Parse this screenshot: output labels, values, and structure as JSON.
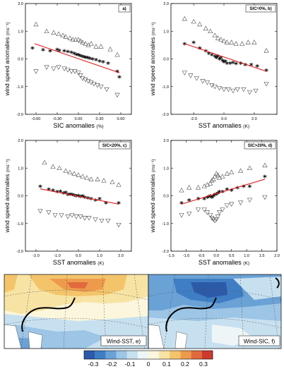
{
  "panels": [
    {
      "type": "scatter",
      "label": "a)",
      "xlabel": "SIC anomalies",
      "xunit": "(%)",
      "ylabel": "wind speed anomalies",
      "yunit": "(ms⁻¹)",
      "xlim": [
        -0.75,
        0.75
      ],
      "ylim": [
        -2.0,
        2.0
      ],
      "xticks": [
        -0.6,
        -0.3,
        0.0,
        0.3,
        0.6
      ],
      "xtick_labels": [
        "-0.60",
        "-0.30",
        "0.00",
        "0.30",
        "0.60"
      ],
      "yticks": [
        -2.0,
        -1.0,
        0.0,
        1.0,
        2.0
      ],
      "ytick_labels": [
        "-2.0",
        "-1.0",
        "0.0",
        "1.0",
        "2.0"
      ],
      "fit": {
        "x": [
          -0.62,
          0.58
        ],
        "y": [
          0.55,
          -0.5
        ]
      },
      "series": [
        {
          "marker": "star",
          "x": [
            -0.65,
            -0.5,
            -0.4,
            -0.3,
            -0.27,
            -0.2,
            -0.15,
            -0.1,
            -0.06,
            -0.03,
            0.0,
            0.02,
            0.05,
            0.08,
            0.1,
            0.13,
            0.16,
            0.2,
            0.25,
            0.3,
            0.35,
            0.42,
            0.55,
            0.58
          ],
          "y": [
            0.35,
            0.28,
            0.25,
            0.3,
            0.26,
            0.25,
            0.22,
            0.2,
            0.15,
            0.12,
            0.1,
            0.08,
            0.05,
            0.03,
            0.02,
            0.0,
            -0.02,
            -0.05,
            -0.08,
            -0.12,
            -0.15,
            -0.2,
            -0.5,
            -0.7
          ]
        },
        {
          "marker": "triangle-up",
          "x": [
            -0.6,
            -0.45,
            -0.35,
            -0.28,
            -0.22,
            -0.18,
            -0.12,
            -0.08,
            -0.04,
            0.0,
            0.03,
            0.06,
            0.1,
            0.14,
            0.18,
            0.25,
            0.32,
            0.45,
            0.55
          ],
          "y": [
            1.25,
            1.0,
            0.95,
            0.9,
            0.85,
            0.8,
            0.75,
            0.7,
            0.7,
            0.7,
            0.65,
            0.6,
            0.55,
            0.5,
            0.55,
            0.45,
            0.45,
            0.35,
            0.15
          ]
        },
        {
          "marker": "triangle-down",
          "x": [
            -0.6,
            -0.45,
            -0.35,
            -0.28,
            -0.2,
            -0.15,
            -0.1,
            -0.05,
            0.0,
            0.03,
            0.06,
            0.1,
            0.14,
            0.18,
            0.22,
            0.27,
            0.32,
            0.4,
            0.55
          ],
          "y": [
            -0.45,
            -0.3,
            -0.35,
            -0.3,
            -0.35,
            -0.4,
            -0.45,
            -0.45,
            -0.5,
            -0.6,
            -0.7,
            -0.75,
            -0.8,
            -0.85,
            -0.9,
            -0.95,
            -1.0,
            -1.1,
            -1.3
          ]
        }
      ]
    },
    {
      "type": "scatter",
      "label": "SIC=0%, b)",
      "xlabel": "SST anomalies",
      "xunit": "(K)",
      "ylabel": "wind speed anomalies",
      "yunit": "(ms⁻¹)",
      "xlim": [
        -3.5,
        3.5
      ],
      "ylim": [
        -2.0,
        2.0
      ],
      "xticks": [
        -2.0,
        0.0,
        2.0
      ],
      "xtick_labels": [
        "-2.0",
        "0.0",
        "2.0"
      ],
      "yticks": [
        -2.0,
        -1.0,
        0.0,
        1.0,
        2.0
      ],
      "ytick_labels": [
        "-2.0",
        "-1.0",
        "0.0",
        "1.0",
        "2.0"
      ],
      "fit": {
        "x": [
          -2.6,
          2.8
        ],
        "y": [
          0.55,
          -0.45
        ]
      },
      "series": [
        {
          "marker": "star",
          "x": [
            -2.6,
            -2.0,
            -1.6,
            -1.2,
            -1.0,
            -0.8,
            -0.6,
            -0.5,
            -0.4,
            -0.3,
            -0.2,
            -0.1,
            0.0,
            0.1,
            0.2,
            0.4,
            0.6,
            0.8,
            1.1,
            1.4,
            1.8,
            2.2,
            2.8
          ],
          "y": [
            0.5,
            0.55,
            0.35,
            0.25,
            0.15,
            0.1,
            0.05,
            0.0,
            0.05,
            -0.05,
            0.0,
            -0.1,
            -0.15,
            -0.12,
            -0.2,
            -0.2,
            -0.18,
            -0.22,
            -0.2,
            -0.25,
            -0.25,
            -0.3,
            -0.45
          ]
        },
        {
          "marker": "triangle-up",
          "x": [
            -2.6,
            -2.0,
            -1.6,
            -1.2,
            -0.9,
            -0.6,
            -0.4,
            -0.2,
            0.0,
            0.2,
            0.5,
            0.8,
            1.2,
            1.6,
            2.0,
            2.8
          ],
          "y": [
            1.45,
            1.35,
            1.25,
            1.1,
            1.0,
            0.85,
            0.75,
            0.7,
            0.65,
            0.6,
            0.6,
            0.55,
            0.55,
            0.6,
            0.6,
            0.3
          ]
        },
        {
          "marker": "triangle-down",
          "x": [
            -2.6,
            -2.2,
            -1.8,
            -1.4,
            -1.1,
            -0.8,
            -0.6,
            -0.3,
            0.0,
            0.3,
            0.6,
            0.9,
            1.3,
            1.7,
            2.1,
            2.8
          ],
          "y": [
            -0.5,
            -0.6,
            -0.7,
            -0.8,
            -0.85,
            -0.95,
            -1.0,
            -1.05,
            -1.1,
            -1.1,
            -1.15,
            -1.1,
            -1.1,
            -1.2,
            -1.15,
            -0.9
          ]
        }
      ]
    },
    {
      "type": "scatter",
      "label": "SIC<20%, c)",
      "xlabel": "SST anomalies",
      "xunit": "(K)",
      "ylabel": "wind speed anomalies",
      "yunit": "(ms⁻¹)",
      "xlim": [
        -2.5,
        2.5
      ],
      "ylim": [
        -2.0,
        2.0
      ],
      "xticks": [
        -2.0,
        -1.0,
        0.0,
        1.0,
        2.0
      ],
      "xtick_labels": [
        "-2.0",
        "-1.0",
        "0.0",
        "1.0",
        "2.0"
      ],
      "yticks": [
        -2.0,
        -1.0,
        0.0,
        1.0,
        2.0
      ],
      "ytick_labels": [
        "-2.0",
        "-1.0",
        "0.0",
        "1.0",
        "2.0"
      ],
      "fit": {
        "x": [
          -1.8,
          1.9
        ],
        "y": [
          0.25,
          -0.3
        ]
      },
      "series": [
        {
          "marker": "star",
          "x": [
            -1.8,
            -1.4,
            -1.2,
            -1.0,
            -0.85,
            -0.7,
            -0.6,
            -0.5,
            -0.4,
            -0.3,
            -0.2,
            -0.1,
            0.0,
            0.1,
            0.2,
            0.3,
            0.45,
            0.6,
            0.8,
            1.0,
            1.3,
            1.9
          ],
          "y": [
            0.3,
            0.2,
            0.15,
            0.1,
            0.12,
            0.05,
            0.08,
            0.0,
            0.02,
            0.0,
            -0.02,
            -0.05,
            -0.03,
            -0.08,
            -0.05,
            -0.1,
            -0.12,
            -0.15,
            -0.2,
            -0.15,
            -0.3,
            -0.3
          ]
        },
        {
          "marker": "triangle-up",
          "x": [
            -1.6,
            -1.2,
            -0.9,
            -0.6,
            -0.4,
            -0.2,
            0.0,
            0.2,
            0.4,
            0.6,
            0.9,
            1.2,
            1.6,
            1.9
          ],
          "y": [
            1.2,
            1.05,
            1.0,
            0.9,
            0.85,
            0.8,
            0.75,
            0.7,
            0.65,
            0.6,
            0.6,
            0.55,
            0.5,
            0.4
          ]
        },
        {
          "marker": "triangle-down",
          "x": [
            -1.8,
            -1.4,
            -1.1,
            -0.8,
            -0.5,
            -0.3,
            -0.1,
            0.1,
            0.3,
            0.5,
            0.8,
            1.1,
            1.4,
            1.9
          ],
          "y": [
            -0.55,
            -0.6,
            -0.7,
            -0.7,
            -0.75,
            -0.7,
            -0.75,
            -0.75,
            -0.8,
            -0.8,
            -0.85,
            -0.9,
            -0.9,
            -1.05
          ]
        }
      ]
    },
    {
      "type": "scatter",
      "label": "SIC>20%, d)",
      "xlabel": "SST anomalies",
      "xunit": "(K)",
      "ylabel": "wind speed anomalies",
      "yunit": "(ms⁻¹)",
      "xlim": [
        -1.5,
        2.0
      ],
      "ylim": [
        -2.0,
        2.0
      ],
      "xticks": [
        -1.5,
        -1.0,
        -0.5,
        0.0,
        0.5,
        1.0,
        1.5,
        2.0
      ],
      "xtick_labels": [
        "-1.5",
        "-1.0",
        "-0.5",
        "0.0",
        "0.5",
        "1.0",
        "1.5",
        "2.0"
      ],
      "yticks": [
        -2.0,
        -1.0,
        0.0,
        1.0,
        2.0
      ],
      "ytick_labels": [
        "-2.0",
        "-1.0",
        "0.0",
        "1.0",
        "2.0"
      ],
      "fit": {
        "x": [
          -1.15,
          1.6
        ],
        "y": [
          -0.3,
          0.6
        ]
      },
      "series": [
        {
          "marker": "star",
          "x": [
            -1.15,
            -0.9,
            -0.6,
            -0.4,
            -0.3,
            -0.25,
            -0.2,
            -0.15,
            -0.1,
            -0.05,
            0.0,
            0.05,
            0.1,
            0.2,
            0.35,
            0.5,
            0.7,
            0.9,
            1.1,
            1.6
          ],
          "y": [
            -0.3,
            -0.2,
            -0.15,
            -0.15,
            -0.1,
            -0.08,
            -0.05,
            -0.1,
            -0.05,
            0.0,
            0.02,
            0.05,
            0.1,
            0.1,
            0.2,
            0.15,
            0.25,
            0.3,
            0.3,
            0.65
          ]
        },
        {
          "marker": "triangle-up",
          "x": [
            -1.15,
            -0.9,
            -0.6,
            -0.4,
            -0.3,
            -0.2,
            -0.15,
            -0.1,
            -0.05,
            0.0,
            0.05,
            0.1,
            0.2,
            0.35,
            0.5,
            0.8,
            1.1,
            1.6
          ],
          "y": [
            0.2,
            0.3,
            0.3,
            0.35,
            0.4,
            0.45,
            0.55,
            0.6,
            0.7,
            0.8,
            0.75,
            0.65,
            0.7,
            0.8,
            0.85,
            0.9,
            1.0,
            1.1
          ]
        },
        {
          "marker": "triangle-down",
          "x": [
            -1.15,
            -0.9,
            -0.6,
            -0.4,
            -0.3,
            -0.2,
            -0.15,
            -0.1,
            -0.05,
            0.0,
            0.05,
            0.1,
            0.2,
            0.35,
            0.5,
            0.8,
            1.1,
            1.6
          ],
          "y": [
            -0.7,
            -0.65,
            -0.5,
            -0.5,
            -0.6,
            -0.7,
            -0.8,
            -0.85,
            -0.9,
            -0.85,
            -0.75,
            -0.6,
            -0.5,
            -0.35,
            -0.3,
            -0.25,
            -0.15,
            -0.05
          ]
        }
      ]
    }
  ],
  "maps": [
    {
      "label": "Wind-SST, e)"
    },
    {
      "label": "Wind-SIC, f)"
    }
  ],
  "colorbar": {
    "ticks": [
      "-0.3",
      "-0.2",
      "-0.1",
      "0",
      "0.1",
      "0.2",
      "0.3"
    ],
    "colors": [
      "#2c5aa8",
      "#3f7ec4",
      "#6aa2d6",
      "#9cc5e6",
      "#c7e0f0",
      "#eef5f6",
      "#fbf6dc",
      "#f7e3a3",
      "#f4c46b",
      "#ee9a4c",
      "#e06a3d",
      "#cc3a2e"
    ]
  },
  "colors": {
    "fit_line": "#e31a1c",
    "land": "#ffffff",
    "coast": "#000000"
  }
}
